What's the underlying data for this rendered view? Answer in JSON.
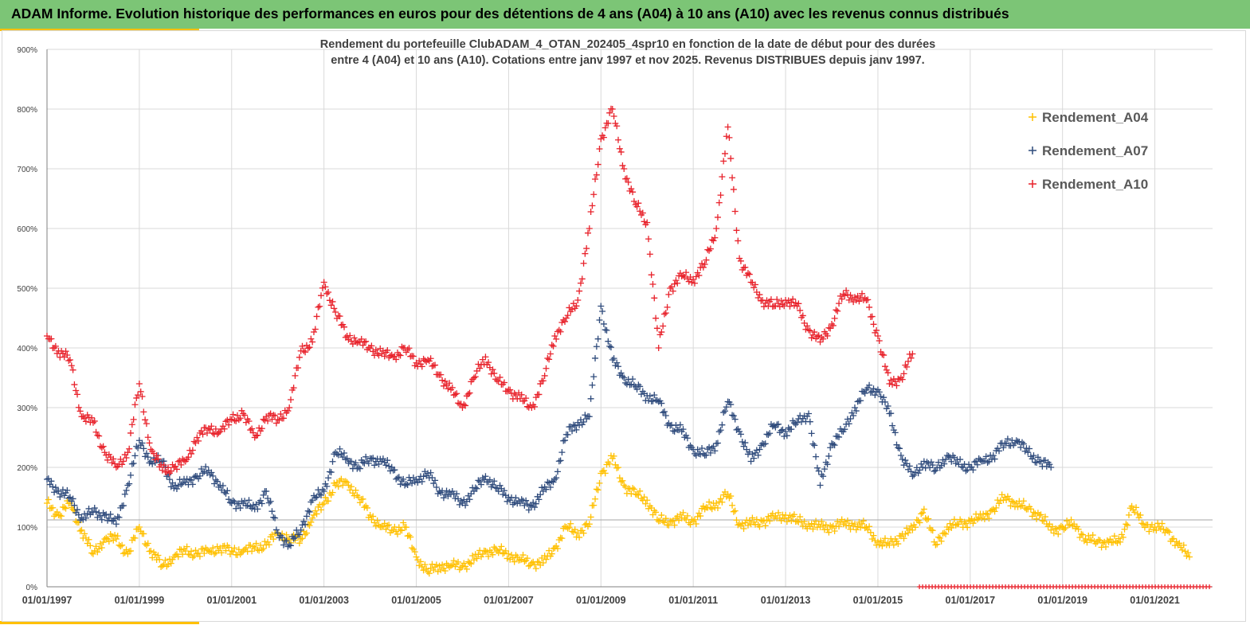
{
  "banner": {
    "title": "ADAM Informe. Evolution historique des performances en euros pour des détentions de 4 ans (A04) à 10 ans (A10) avec les revenus connus distribués",
    "color": "#7cc576",
    "accent_color": "#ffc000"
  },
  "chart_data": {
    "type": "scatter",
    "title_line1": "Rendement du portefeuille ClubADAM_4_OTAN_202405_4spr10  en fonction de la date de début pour des durées",
    "title_line2": "entre 4 (A04) et 10 ans (A10). Cotations entre janv 1997 et nov 2025. Revenus DISTRIBUES depuis janv 1997.",
    "xlabel": "",
    "ylabel": "",
    "xlim": [
      1997.0,
      2022.25
    ],
    "ylim": [
      0,
      900
    ],
    "x_ticks": [
      1997,
      1999,
      2001,
      2003,
      2005,
      2007,
      2009,
      2011,
      2013,
      2015,
      2017,
      2019,
      2021
    ],
    "x_tick_labels": [
      "01/01/1997",
      "01/01/1999",
      "01/01/2001",
      "01/01/2003",
      "01/01/2005",
      "01/01/2007",
      "01/01/2009",
      "01/01/2011",
      "01/01/2013",
      "01/01/2015",
      "01/01/2017",
      "01/01/2019",
      "01/01/2021"
    ],
    "y_ticks": [
      0,
      100,
      200,
      300,
      400,
      500,
      600,
      700,
      800,
      900
    ],
    "y_tick_labels": [
      "0%",
      "100%",
      "200%",
      "300%",
      "400%",
      "500%",
      "600%",
      "700%",
      "800%",
      "900%"
    ],
    "grid": true,
    "marker": "+",
    "reference_line_y": 112,
    "legend_position": "top-right",
    "series": [
      {
        "name": "Rendement_A04",
        "color": "#ffc000",
        "x": [
          1997.0,
          1997.25,
          1997.5,
          1997.75,
          1998.0,
          1998.25,
          1998.5,
          1998.75,
          1999.0,
          1999.25,
          1999.5,
          1999.75,
          2000.0,
          2000.25,
          2000.5,
          2000.75,
          2001.0,
          2001.25,
          2001.5,
          2001.75,
          2002.0,
          2002.25,
          2002.5,
          2002.75,
          2003.0,
          2003.25,
          2003.5,
          2003.75,
          2004.0,
          2004.25,
          2004.5,
          2004.75,
          2005.0,
          2005.25,
          2005.5,
          2005.75,
          2006.0,
          2006.25,
          2006.5,
          2006.75,
          2007.0,
          2007.25,
          2007.5,
          2007.75,
          2008.0,
          2008.25,
          2008.5,
          2008.75,
          2009.0,
          2009.25,
          2009.5,
          2009.75,
          2010.0,
          2010.25,
          2010.5,
          2010.75,
          2011.0,
          2011.25,
          2011.5,
          2011.75,
          2012.0,
          2012.25,
          2012.5,
          2012.75,
          2013.0,
          2013.25,
          2013.5,
          2013.75,
          2014.0,
          2014.25,
          2014.5,
          2014.75,
          2015.0,
          2015.25,
          2015.5,
          2015.75,
          2016.0,
          2016.25,
          2016.5,
          2016.75,
          2017.0,
          2017.25,
          2017.5,
          2017.75,
          2018.0,
          2018.25,
          2018.5,
          2018.75,
          2019.0,
          2019.25,
          2019.5,
          2019.75,
          2020.0,
          2020.25,
          2020.5,
          2020.75,
          2021.0,
          2021.25,
          2021.5,
          2021.75
        ],
        "values": [
          140,
          120,
          140,
          95,
          55,
          80,
          80,
          55,
          100,
          60,
          35,
          50,
          60,
          55,
          60,
          65,
          60,
          60,
          65,
          70,
          90,
          80,
          80,
          115,
          140,
          170,
          175,
          150,
          120,
          100,
          95,
          100,
          50,
          25,
          35,
          35,
          35,
          45,
          60,
          60,
          55,
          45,
          40,
          40,
          65,
          100,
          90,
          105,
          190,
          215,
          170,
          155,
          145,
          110,
          110,
          115,
          110,
          130,
          140,
          155,
          105,
          105,
          110,
          115,
          120,
          110,
          105,
          100,
          100,
          105,
          105,
          100,
          75,
          70,
          85,
          95,
          130,
          70,
          100,
          105,
          110,
          115,
          130,
          150,
          140,
          130,
          120,
          95,
          100,
          105,
          80,
          75,
          75,
          75,
          135,
          105,
          100,
          95,
          70,
          50
        ]
      },
      {
        "name": "Rendement_A07",
        "color": "#2f4b7c",
        "x": [
          1997.0,
          1997.25,
          1997.5,
          1997.75,
          1998.0,
          1998.25,
          1998.5,
          1998.75,
          1999.0,
          1999.25,
          1999.5,
          1999.75,
          2000.0,
          2000.25,
          2000.5,
          2000.75,
          2001.0,
          2001.25,
          2001.5,
          2001.75,
          2002.0,
          2002.25,
          2002.5,
          2002.75,
          2003.0,
          2003.25,
          2003.5,
          2003.75,
          2004.0,
          2004.25,
          2004.5,
          2004.75,
          2005.0,
          2005.25,
          2005.5,
          2005.75,
          2006.0,
          2006.25,
          2006.5,
          2006.75,
          2007.0,
          2007.25,
          2007.5,
          2007.75,
          2008.0,
          2008.25,
          2008.5,
          2008.75,
          2009.0,
          2009.25,
          2009.5,
          2009.75,
          2010.0,
          2010.25,
          2010.5,
          2010.75,
          2011.0,
          2011.25,
          2011.5,
          2011.75,
          2012.0,
          2012.25,
          2012.5,
          2012.75,
          2013.0,
          2013.25,
          2013.5,
          2013.75,
          2014.0,
          2014.25,
          2014.5,
          2014.75,
          2015.0,
          2015.25,
          2015.5,
          2015.75,
          2016.0,
          2016.25,
          2016.5,
          2016.75,
          2017.0,
          2017.25,
          2017.5,
          2017.75,
          2018.0,
          2018.25,
          2018.5,
          2018.75
        ],
        "values": [
          180,
          160,
          150,
          115,
          125,
          120,
          105,
          170,
          245,
          210,
          210,
          165,
          175,
          185,
          195,
          170,
          140,
          140,
          130,
          160,
          90,
          70,
          95,
          145,
          160,
          225,
          215,
          200,
          215,
          210,
          195,
          170,
          180,
          190,
          160,
          155,
          140,
          160,
          185,
          165,
          150,
          140,
          135,
          160,
          180,
          255,
          275,
          285,
          470,
          380,
          350,
          335,
          320,
          310,
          270,
          260,
          230,
          220,
          240,
          310,
          260,
          210,
          240,
          270,
          260,
          275,
          290,
          170,
          240,
          260,
          300,
          330,
          330,
          290,
          220,
          185,
          210,
          195,
          220,
          205,
          200,
          210,
          220,
          240,
          245,
          225,
          210,
          200
        ]
      },
      {
        "name": "Rendement_A10",
        "color": "#e8222b",
        "x": [
          1997.0,
          1997.25,
          1997.5,
          1997.75,
          1998.0,
          1998.25,
          1998.5,
          1998.75,
          1999.0,
          1999.25,
          1999.5,
          1999.75,
          2000.0,
          2000.25,
          2000.5,
          2000.75,
          2001.0,
          2001.25,
          2001.5,
          2001.75,
          2002.0,
          2002.25,
          2002.5,
          2002.75,
          2003.0,
          2003.25,
          2003.5,
          2003.75,
          2004.0,
          2004.25,
          2004.5,
          2004.75,
          2005.0,
          2005.25,
          2005.5,
          2005.75,
          2006.0,
          2006.25,
          2006.5,
          2006.75,
          2007.0,
          2007.25,
          2007.5,
          2007.75,
          2008.0,
          2008.25,
          2008.5,
          2008.75,
          2009.0,
          2009.25,
          2009.5,
          2009.75,
          2010.0,
          2010.25,
          2010.5,
          2010.75,
          2011.0,
          2011.25,
          2011.5,
          2011.75,
          2012.0,
          2012.25,
          2012.5,
          2012.75,
          2013.0,
          2013.25,
          2013.5,
          2013.75,
          2014.0,
          2014.25,
          2014.5,
          2014.75,
          2015.0,
          2015.25,
          2015.5,
          2015.75
        ],
        "values": [
          420,
          395,
          380,
          285,
          275,
          225,
          200,
          225,
          340,
          230,
          195,
          200,
          210,
          250,
          265,
          260,
          280,
          290,
          250,
          285,
          280,
          300,
          395,
          410,
          510,
          460,
          420,
          410,
          400,
          390,
          385,
          400,
          375,
          380,
          355,
          330,
          300,
          350,
          385,
          345,
          330,
          315,
          300,
          345,
          420,
          450,
          480,
          600,
          750,
          800,
          700,
          640,
          610,
          400,
          500,
          520,
          515,
          540,
          600,
          770,
          550,
          510,
          480,
          470,
          480,
          470,
          430,
          410,
          440,
          490,
          485,
          480,
          420,
          340,
          350,
          390
        ]
      }
    ],
    "bottom_band": {
      "color": "#e8222b",
      "x_start": 2015.9,
      "x_end": 2022.25,
      "value": 0
    }
  }
}
